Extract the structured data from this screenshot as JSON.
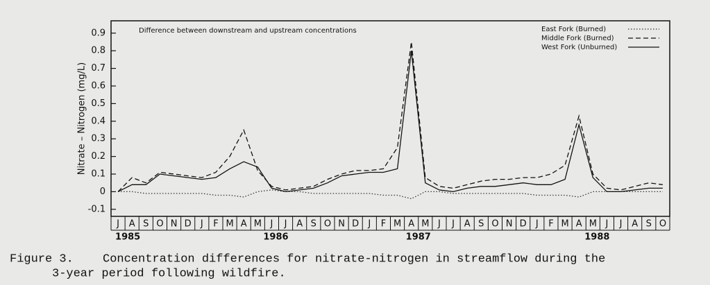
{
  "chart_data": {
    "type": "line",
    "annotation": "Difference between downstream and upstream concentrations",
    "y_label": "Nitrate – Nitrogen (mg/L)",
    "categories": [
      "J",
      "A",
      "S",
      "O",
      "N",
      "D",
      "J",
      "F",
      "M",
      "A",
      "M",
      "J",
      "J",
      "A",
      "S",
      "O",
      "N",
      "D",
      "J",
      "F",
      "M",
      "A",
      "M",
      "J",
      "J",
      "A",
      "S",
      "O",
      "N",
      "D",
      "J",
      "F",
      "M",
      "A",
      "M",
      "J",
      "J",
      "A",
      "S",
      "O"
    ],
    "year_labels": [
      "1985",
      "1986",
      "1987",
      "1988"
    ],
    "ylim": [
      -0.14,
      0.97
    ],
    "yticks": [
      -0.1,
      0,
      0.1,
      0.2,
      0.3,
      0.4,
      0.5,
      0.6,
      0.7,
      0.8,
      0.9
    ],
    "legend": "upper right",
    "series": [
      {
        "name": "East Fork (Burned)",
        "color": "#333333",
        "dash": "dotted",
        "values": [
          0,
          0,
          -0.01,
          -0.01,
          -0.01,
          -0.01,
          -0.01,
          -0.02,
          -0.02,
          -0.03,
          0,
          0.01,
          0,
          0,
          -0.01,
          -0.01,
          -0.01,
          -0.01,
          -0.01,
          -0.02,
          -0.02,
          -0.04,
          0,
          0,
          -0.01,
          -0.01,
          -0.01,
          -0.01,
          -0.01,
          -0.01,
          -0.02,
          -0.02,
          -0.02,
          -0.03,
          0,
          0,
          0,
          0,
          0,
          0
        ]
      },
      {
        "name": "Middle Fork (Burned)",
        "color": "#111111",
        "dash": "dashed",
        "values": [
          0,
          0.08,
          0.05,
          0.11,
          0.1,
          0.09,
          0.08,
          0.11,
          0.2,
          0.35,
          0.12,
          0.03,
          0.01,
          0.02,
          0.03,
          0.07,
          0.1,
          0.12,
          0.12,
          0.13,
          0.25,
          0.85,
          0.08,
          0.03,
          0.02,
          0.04,
          0.06,
          0.07,
          0.07,
          0.08,
          0.08,
          0.1,
          0.15,
          0.43,
          0.1,
          0.02,
          0.01,
          0.03,
          0.05,
          0.04
        ]
      },
      {
        "name": "West Fork (Unburned)",
        "color": "#111111",
        "dash": "solid",
        "values": [
          0,
          0.04,
          0.04,
          0.1,
          0.09,
          0.08,
          0.07,
          0.08,
          0.13,
          0.17,
          0.14,
          0.02,
          0,
          0.01,
          0.02,
          0.05,
          0.09,
          0.1,
          0.11,
          0.11,
          0.13,
          0.8,
          0.05,
          0.01,
          0,
          0.02,
          0.03,
          0.03,
          0.04,
          0.05,
          0.04,
          0.04,
          0.07,
          0.38,
          0.08,
          0,
          0,
          0.01,
          0.02,
          0.02
        ]
      }
    ]
  },
  "caption": {
    "label": "Figure 3.",
    "lines": [
      "Concentration differences for nitrate-nitrogen in streamflow during the",
      "3-year period following wildfire."
    ]
  }
}
